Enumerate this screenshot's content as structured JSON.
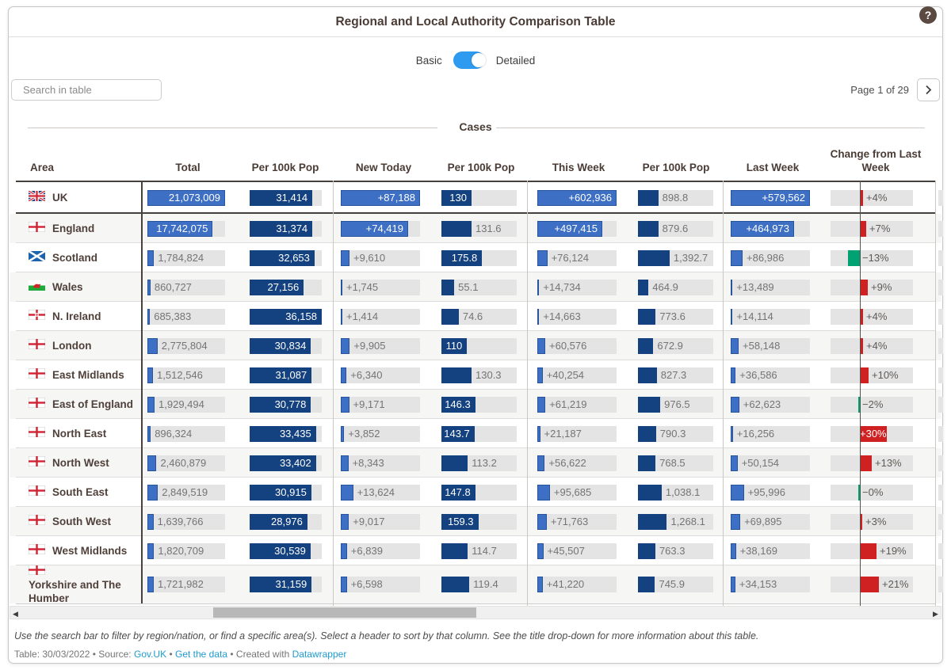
{
  "header": {
    "title": "Regional and Local Authority Comparison Table",
    "help_icon": "?"
  },
  "view_toggle": {
    "left_label": "Basic",
    "right_label": "Detailed",
    "state": "Detailed",
    "color": "#2E9BF0"
  },
  "search": {
    "placeholder": "Search in table"
  },
  "pagination": {
    "label": "Page 1 of 29",
    "next_icon": "❯"
  },
  "section": {
    "label": "Cases"
  },
  "columns": [
    "Area",
    "Total",
    "Per 100k Pop",
    "New Today",
    "Per 100k Pop",
    "This Week",
    "Per 100k Pop",
    "Last Week",
    "Change from Last Week"
  ],
  "colors": {
    "count_bar": "#3d70c4",
    "rate_bar": "#14417f",
    "track": "#e4e4e4",
    "increase": "#cf2121",
    "decrease": "#00a173",
    "toggle": "#2E9BF0",
    "link": "#1d9bd0"
  },
  "table": {
    "rows": [
      {
        "area": "UK",
        "flag": "uk",
        "cells": [
          {
            "v": "21,073,009",
            "pct": 100,
            "in": true
          },
          {
            "v": "31,414",
            "pct": 87,
            "in": true
          },
          {
            "v": "+87,188",
            "pct": 100,
            "in": true
          },
          {
            "v": "130",
            "pct": 40,
            "in": true
          },
          {
            "v": "+602,936",
            "pct": 100,
            "in": true
          },
          {
            "v": "898.8",
            "pct": 27,
            "in": false
          },
          {
            "v": "+579,562",
            "pct": 100,
            "in": true
          }
        ],
        "change": {
          "v": "+4%",
          "n": 4,
          "in": false
        }
      },
      {
        "area": "England",
        "flag": "england",
        "cells": [
          {
            "v": "17,742,075",
            "pct": 84,
            "in": true
          },
          {
            "v": "31,374",
            "pct": 87,
            "in": true
          },
          {
            "v": "+74,419",
            "pct": 85,
            "in": true
          },
          {
            "v": "131.6",
            "pct": 40,
            "in": false
          },
          {
            "v": "+497,415",
            "pct": 82,
            "in": true
          },
          {
            "v": "879.6",
            "pct": 27,
            "in": false
          },
          {
            "v": "+464,973",
            "pct": 80,
            "in": true
          }
        ],
        "change": {
          "v": "+7%",
          "n": 7,
          "in": false
        }
      },
      {
        "area": "Scotland",
        "flag": "scotland",
        "cells": [
          {
            "v": "1,784,824",
            "pct": 8.5,
            "in": false
          },
          {
            "v": "32,653",
            "pct": 90,
            "in": true
          },
          {
            "v": "+9,610",
            "pct": 11,
            "in": false
          },
          {
            "v": "175.8",
            "pct": 54,
            "in": true
          },
          {
            "v": "+76,124",
            "pct": 12.6,
            "in": false
          },
          {
            "v": "1,392.7",
            "pct": 42,
            "in": false
          },
          {
            "v": "+86,986",
            "pct": 15,
            "in": false
          }
        ],
        "change": {
          "v": "−13%",
          "n": -13,
          "in": false
        }
      },
      {
        "area": "Wales",
        "flag": "wales",
        "cells": [
          {
            "v": "860,727",
            "pct": 4,
            "in": false
          },
          {
            "v": "27,156",
            "pct": 75,
            "in": true
          },
          {
            "v": "+1,745",
            "pct": 2,
            "in": false
          },
          {
            "v": "55.1",
            "pct": 17,
            "in": false
          },
          {
            "v": "+14,734",
            "pct": 2.4,
            "in": false
          },
          {
            "v": "464.9",
            "pct": 14,
            "in": false
          },
          {
            "v": "+13,489",
            "pct": 2.3,
            "in": false
          }
        ],
        "change": {
          "v": "+9%",
          "n": 9,
          "in": false
        }
      },
      {
        "area": "N. Ireland",
        "flag": "nireland",
        "cells": [
          {
            "v": "685,383",
            "pct": 3.3,
            "in": false
          },
          {
            "v": "36,158",
            "pct": 100,
            "in": true
          },
          {
            "v": "+1,414",
            "pct": 1.6,
            "in": false
          },
          {
            "v": "74.6",
            "pct": 23,
            "in": false
          },
          {
            "v": "+14,663",
            "pct": 2.4,
            "in": false
          },
          {
            "v": "773.6",
            "pct": 23.5,
            "in": false
          },
          {
            "v": "+14,114",
            "pct": 2.4,
            "in": false
          }
        ],
        "change": {
          "v": "+4%",
          "n": 4,
          "in": false
        }
      },
      {
        "area": "London",
        "flag": "england",
        "cells": [
          {
            "v": "2,775,804",
            "pct": 13,
            "in": false
          },
          {
            "v": "30,834",
            "pct": 85,
            "in": true
          },
          {
            "v": "+9,905",
            "pct": 11.4,
            "in": false
          },
          {
            "v": "110",
            "pct": 34,
            "in": true
          },
          {
            "v": "+60,576",
            "pct": 10,
            "in": false
          },
          {
            "v": "672.9",
            "pct": 20.4,
            "in": false
          },
          {
            "v": "+58,148",
            "pct": 10,
            "in": false
          }
        ],
        "change": {
          "v": "+4%",
          "n": 4,
          "in": false
        }
      },
      {
        "area": "East Midlands",
        "flag": "england",
        "cells": [
          {
            "v": "1,512,546",
            "pct": 7.2,
            "in": false
          },
          {
            "v": "31,087",
            "pct": 86,
            "in": true
          },
          {
            "v": "+6,340",
            "pct": 7.3,
            "in": false
          },
          {
            "v": "130.3",
            "pct": 40,
            "in": false
          },
          {
            "v": "+40,254",
            "pct": 6.7,
            "in": false
          },
          {
            "v": "827.3",
            "pct": 25,
            "in": false
          },
          {
            "v": "+36,586",
            "pct": 6.3,
            "in": false
          }
        ],
        "change": {
          "v": "+10%",
          "n": 10,
          "in": false
        }
      },
      {
        "area": "East of England",
        "flag": "england",
        "cells": [
          {
            "v": "1,929,494",
            "pct": 9.2,
            "in": false
          },
          {
            "v": "30,778",
            "pct": 85,
            "in": true
          },
          {
            "v": "+9,171",
            "pct": 10.5,
            "in": false
          },
          {
            "v": "146.3",
            "pct": 45,
            "in": true
          },
          {
            "v": "+61,219",
            "pct": 10.2,
            "in": false
          },
          {
            "v": "976.5",
            "pct": 29.6,
            "in": false
          },
          {
            "v": "+62,623",
            "pct": 10.8,
            "in": false
          }
        ],
        "change": {
          "v": "−2%",
          "n": -2,
          "in": false
        }
      },
      {
        "area": "North East",
        "flag": "england",
        "cells": [
          {
            "v": "896,324",
            "pct": 4.3,
            "in": false
          },
          {
            "v": "33,435",
            "pct": 92,
            "in": true
          },
          {
            "v": "+3,852",
            "pct": 4.4,
            "in": false
          },
          {
            "v": "143.7",
            "pct": 44,
            "in": true
          },
          {
            "v": "+21,187",
            "pct": 3.5,
            "in": false
          },
          {
            "v": "790.3",
            "pct": 24,
            "in": false
          },
          {
            "v": "+16,256",
            "pct": 2.8,
            "in": false
          }
        ],
        "change": {
          "v": "+30%",
          "n": 30,
          "in": true
        }
      },
      {
        "area": "North West",
        "flag": "england",
        "cells": [
          {
            "v": "2,460,879",
            "pct": 11.7,
            "in": false
          },
          {
            "v": "33,402",
            "pct": 92,
            "in": true
          },
          {
            "v": "+8,343",
            "pct": 9.6,
            "in": false
          },
          {
            "v": "113.2",
            "pct": 35,
            "in": false
          },
          {
            "v": "+56,622",
            "pct": 9.4,
            "in": false
          },
          {
            "v": "768.5",
            "pct": 23.3,
            "in": false
          },
          {
            "v": "+50,154",
            "pct": 8.7,
            "in": false
          }
        ],
        "change": {
          "v": "+13%",
          "n": 13,
          "in": false
        }
      },
      {
        "area": "South East",
        "flag": "england",
        "cells": [
          {
            "v": "2,849,519",
            "pct": 13.5,
            "in": false
          },
          {
            "v": "30,915",
            "pct": 85.5,
            "in": true
          },
          {
            "v": "+13,624",
            "pct": 15.6,
            "in": false
          },
          {
            "v": "147.8",
            "pct": 45,
            "in": true
          },
          {
            "v": "+95,685",
            "pct": 15.9,
            "in": false
          },
          {
            "v": "1,038.1",
            "pct": 31.5,
            "in": false
          },
          {
            "v": "+95,996",
            "pct": 16.6,
            "in": false
          }
        ],
        "change": {
          "v": "−0%",
          "n": -0.5,
          "in": false
        }
      },
      {
        "area": "South West",
        "flag": "england",
        "cells": [
          {
            "v": "1,639,766",
            "pct": 7.8,
            "in": false
          },
          {
            "v": "28,976",
            "pct": 80,
            "in": true
          },
          {
            "v": "+9,017",
            "pct": 10.3,
            "in": false
          },
          {
            "v": "159.3",
            "pct": 49,
            "in": true
          },
          {
            "v": "+71,763",
            "pct": 11.9,
            "in": false
          },
          {
            "v": "1,268.1",
            "pct": 38.4,
            "in": false
          },
          {
            "v": "+69,895",
            "pct": 12.1,
            "in": false
          }
        ],
        "change": {
          "v": "+3%",
          "n": 3,
          "in": false
        }
      },
      {
        "area": "West Midlands",
        "flag": "england",
        "cells": [
          {
            "v": "1,820,709",
            "pct": 8.6,
            "in": false
          },
          {
            "v": "30,539",
            "pct": 84.5,
            "in": true
          },
          {
            "v": "+6,839",
            "pct": 7.8,
            "in": false
          },
          {
            "v": "114.7",
            "pct": 35,
            "in": false
          },
          {
            "v": "+45,507",
            "pct": 7.5,
            "in": false
          },
          {
            "v": "763.3",
            "pct": 23.1,
            "in": false
          },
          {
            "v": "+38,169",
            "pct": 6.6,
            "in": false
          }
        ],
        "change": {
          "v": "+19%",
          "n": 19,
          "in": false
        }
      },
      {
        "area": "Yorkshire and The Humber",
        "flag": "england",
        "cells": [
          {
            "v": "1,721,982",
            "pct": 8.2,
            "in": false
          },
          {
            "v": "31,159",
            "pct": 86,
            "in": true
          },
          {
            "v": "+6,598",
            "pct": 7.6,
            "in": false
          },
          {
            "v": "119.4",
            "pct": 37,
            "in": false
          },
          {
            "v": "+41,220",
            "pct": 6.8,
            "in": false
          },
          {
            "v": "745.9",
            "pct": 22.6,
            "in": false
          },
          {
            "v": "+34,153",
            "pct": 5.9,
            "in": false
          }
        ],
        "change": {
          "v": "+21%",
          "n": 21,
          "in": false
        }
      }
    ]
  },
  "footer": {
    "note": "Use the search bar to filter by region/nation, or find a specific area(s). Select a header to sort by that column. See the title drop-down for more information about this table.",
    "meta_prefix": "Table: 30/03/2022 • Source: ",
    "link_source": "Gov.UK",
    "sep1": " • ",
    "link_data": "Get the data",
    "sep2": " • Created with ",
    "link_brand": "Datawrapper"
  }
}
